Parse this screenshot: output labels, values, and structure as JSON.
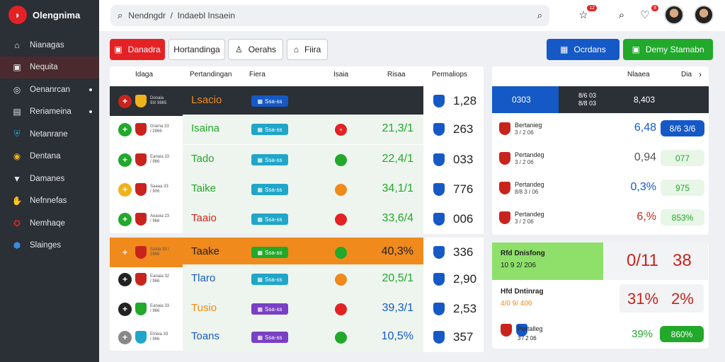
{
  "app": {
    "name": "Olengnima"
  },
  "sidebar": {
    "items": [
      {
        "label": "Nianagas",
        "icon": "home-icon",
        "active": false,
        "dot": false
      },
      {
        "label": "Nequita",
        "icon": "inbox-icon",
        "active": true,
        "dot": false
      },
      {
        "label": "Oenanrcan",
        "icon": "globe-icon",
        "active": false,
        "dot": true
      },
      {
        "label": "Reriameina",
        "icon": "tray-icon",
        "active": false,
        "dot": true
      },
      {
        "label": "Netanrane",
        "icon": "shield-icon",
        "active": false,
        "dot": false
      },
      {
        "label": "Dentana",
        "icon": "flame-icon",
        "active": false,
        "dot": false
      },
      {
        "label": "Damanes",
        "icon": "flag-icon",
        "active": false,
        "dot": false
      },
      {
        "label": "Nefnnefas",
        "icon": "hand-icon",
        "active": false,
        "dot": false
      },
      {
        "label": "Nemhaqe",
        "icon": "crest-icon",
        "active": false,
        "dot": false
      },
      {
        "label": "Slainges",
        "icon": "bolt-icon",
        "active": false,
        "dot": false
      }
    ]
  },
  "header": {
    "search_value": "Nendngdr  /  Indaebl Insaein",
    "notifications_count": "12",
    "messages_count": "8"
  },
  "toolbar": {
    "btn1": "Danadra",
    "btn2": "Hortandinga",
    "btn3": "Oerahs",
    "btn4": "Fiira",
    "btn_right1": "Ocrdans",
    "btn_right2": "Demy Stamabn"
  },
  "table": {
    "headers": {
      "col1": "Idaga",
      "col2": "Pertandingan",
      "col3": "Fiera",
      "col4": "Isaia",
      "col5": "Risaa",
      "col6": "Permaliops"
    },
    "rows": [
      {
        "variant": "dark",
        "mini": "Donaia 93/ 9865",
        "name": "Lsacio",
        "name_color": "#f08a1c",
        "tag": "Ssa-ss",
        "tag_color": "#1559c7",
        "status": "",
        "status_color": "",
        "pct": "",
        "pct_color": "",
        "val": "1,28"
      },
      {
        "variant": "normal",
        "mini": "Grama 33 / 2966",
        "name": "Isaina",
        "name_color": "#22a82b",
        "tag": "Ssa-ss",
        "tag_color": "#1fa6c9",
        "status": "+",
        "status_color": "#e32226",
        "pct": "21,3/1",
        "pct_color": "#22a82b",
        "val": "263"
      },
      {
        "variant": "normal",
        "mini": "Eanaia 33 / 966",
        "name": "Tado",
        "name_color": "#22a82b",
        "tag": "Ssa-ss",
        "tag_color": "#1fa6c9",
        "status": "",
        "status_color": "#22a82b",
        "pct": "22,4/1",
        "pct_color": "#22a82b",
        "val": "033"
      },
      {
        "variant": "normal",
        "mini": "Saaaa 33 / 906",
        "name": "Taike",
        "name_color": "#22a82b",
        "tag": "Ssa-ss",
        "tag_color": "#1fa6c9",
        "status": "",
        "status_color": "#f08a1c",
        "pct": "34,1/1",
        "pct_color": "#22a82b",
        "val": "776"
      },
      {
        "variant": "normal",
        "mini": "Aeaoia 23 / 966",
        "name": "Taaio",
        "name_color": "#c8241d",
        "tag": "Ssa-ss",
        "tag_color": "#1fa6c9",
        "status": "",
        "status_color": "#e32226",
        "pct": "33,6/4",
        "pct_color": "#22a82b",
        "val": "006"
      },
      {
        "variant": "orange",
        "mini": "Salda 33 / 2966",
        "name": "Taake",
        "name_color": "#222222",
        "tag": "Ssa-ss",
        "tag_color": "#22a82b",
        "status": "",
        "status_color": "#22a82b",
        "pct": "40,3%",
        "pct_color": "#222222",
        "val": "336"
      },
      {
        "variant": "normal",
        "mini": "Eanaia 32 / 966",
        "name": "Tlaro",
        "name_color": "#1559c7",
        "tag": "Ssa-ss",
        "tag_color": "#1fa6c9",
        "status": "",
        "status_color": "#f08a1c",
        "pct": "20,5/1",
        "pct_color": "#22a82b",
        "val": "2,90"
      },
      {
        "variant": "normal",
        "mini": "Eanaia 33 / 966",
        "name": "Tusio",
        "name_color": "#f08a1c",
        "tag": "Ssa-ss",
        "tag_color": "#7a3fc4",
        "status": "",
        "status_color": "#e32226",
        "pct": "39,3/1",
        "pct_color": "#1559c7",
        "val": "2,53"
      },
      {
        "variant": "normal",
        "mini": "Etneia 33 / 966",
        "name": "Toans",
        "name_color": "#1559c7",
        "tag": "Ssa-ss",
        "tag_color": "#7a3fc4",
        "status": "",
        "status_color": "#22a82b",
        "pct": "10,5%",
        "pct_color": "#1559c7",
        "val": "357"
      }
    ]
  },
  "right_panel": {
    "head1": "Nlaaea",
    "head2": "Dia",
    "top_row": {
      "left": "0303",
      "mid": "8/6 03 8/8 03",
      "right": "8,403"
    },
    "rows": [
      {
        "label": "Bertanieg",
        "sub": "3 / 2 06",
        "odd": "6,48",
        "odd_color": "#1559c7",
        "pill": "8/6 3/6",
        "pill_style": "rp-blue"
      },
      {
        "label": "Pertandeg",
        "sub": "3 / 2 06",
        "odd": "0,94",
        "odd_color": "#555555",
        "pill": "077",
        "pill_style": "rp-lgreen"
      },
      {
        "label": "Pertandeg",
        "sub": "8/8 3 / 06",
        "odd": "0,3%",
        "odd_color": "#1559c7",
        "pill": "975",
        "pill_style": "rp-lgreen"
      },
      {
        "label": "Pertandeg",
        "sub": "3 / 2 06",
        "odd": "6,%",
        "odd_color": "#c8241d",
        "pill": "853%",
        "pill_style": "rp-lgreen"
      }
    ],
    "featured": {
      "label": "Rfd Dnisfong",
      "sub": "10 9 2/ 206",
      "odd1": "0/11",
      "odd2": "38"
    },
    "row6": {
      "label": "Hfd Dntinrag",
      "sub": "4/0 9/ 406",
      "odd1": "31%",
      "odd2": "2%"
    },
    "row7": {
      "label": "Pertalleg",
      "sub": "3 / 2 06",
      "odd": "39%",
      "pill": "860%"
    }
  }
}
